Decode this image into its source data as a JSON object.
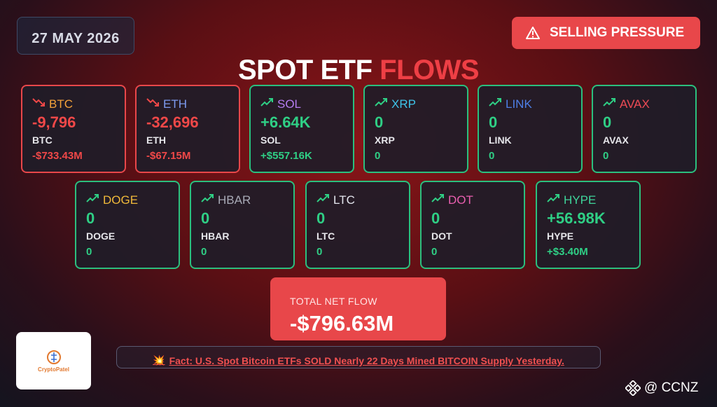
{
  "date": "27 MAY 2026",
  "alert": {
    "icon": "warning-icon",
    "label": "SELLING PRESSURE"
  },
  "title": {
    "part1": "SPOT ETF",
    "part2": "FLOWS"
  },
  "colors": {
    "negative": "#e8474a",
    "positive": "#2bbf7e"
  },
  "assets": [
    {
      "symbol": "BTC",
      "symbol_color": "#f4a23a",
      "trend": "down",
      "flow": "-9,796",
      "unit": "BTC",
      "usd": "-$733.43M"
    },
    {
      "symbol": "ETH",
      "symbol_color": "#7d9bf0",
      "trend": "down",
      "flow": "-32,696",
      "unit": "ETH",
      "usd": "-$67.15M"
    },
    {
      "symbol": "SOL",
      "symbol_color": "#b57cf0",
      "trend": "up",
      "flow": "+6.64K",
      "unit": "SOL",
      "usd": "+$557.16K"
    },
    {
      "symbol": "XRP",
      "symbol_color": "#3ec3e8",
      "trend": "up",
      "flow": "0",
      "unit": "XRP",
      "usd": "0"
    },
    {
      "symbol": "LINK",
      "symbol_color": "#4e7fe6",
      "trend": "up",
      "flow": "0",
      "unit": "LINK",
      "usd": "0"
    },
    {
      "symbol": "AVAX",
      "symbol_color": "#ee4b55",
      "trend": "up",
      "flow": "0",
      "unit": "AVAX",
      "usd": "0"
    },
    {
      "symbol": "DOGE",
      "symbol_color": "#f0b93a",
      "trend": "up",
      "flow": "0",
      "unit": "DOGE",
      "usd": "0"
    },
    {
      "symbol": "HBAR",
      "symbol_color": "#a7a9b5",
      "trend": "up",
      "flow": "0",
      "unit": "HBAR",
      "usd": "0"
    },
    {
      "symbol": "LTC",
      "symbol_color": "#e4e6ee",
      "trend": "up",
      "flow": "0",
      "unit": "LTC",
      "usd": "0"
    },
    {
      "symbol": "DOT",
      "symbol_color": "#ea5fb0",
      "trend": "up",
      "flow": "0",
      "unit": "DOT",
      "usd": "0"
    },
    {
      "symbol": "HYPE",
      "symbol_color": "#3fd49a",
      "trend": "up",
      "flow": "+56.98K",
      "unit": "HYPE",
      "usd": "+$3.40M"
    }
  ],
  "total": {
    "label": "TOTAL NET FLOW",
    "amount": "-$796.63M"
  },
  "fact": {
    "icon": "collision-icon",
    "text": "Fact: U.S. Spot Bitcoin ETFs SOLD Nearly 22 Days Mined BITCOIN Supply Yesterday."
  },
  "logo": {
    "text": "CryptoPatel"
  },
  "watermark": {
    "icon": "binance-icon",
    "text": "@ CCNZ"
  }
}
